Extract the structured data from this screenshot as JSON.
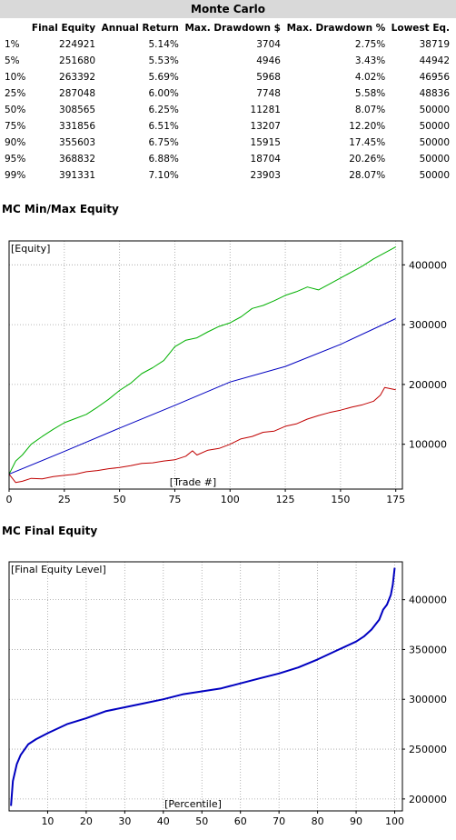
{
  "monte_carlo": {
    "title": "Monte Carlo",
    "columns": [
      "",
      "Final Equity",
      "Annual Return",
      "Max. Drawdown $",
      "Max. Drawdown %",
      "Lowest Eq."
    ],
    "rows": [
      [
        "1%",
        "224921",
        "5.14%",
        "3704",
        "2.75%",
        "38719"
      ],
      [
        "5%",
        "251680",
        "5.53%",
        "4946",
        "3.43%",
        "44942"
      ],
      [
        "10%",
        "263392",
        "5.69%",
        "5968",
        "4.02%",
        "46956"
      ],
      [
        "25%",
        "287048",
        "6.00%",
        "7748",
        "5.58%",
        "48836"
      ],
      [
        "50%",
        "308565",
        "6.25%",
        "11281",
        "8.07%",
        "50000"
      ],
      [
        "75%",
        "331856",
        "6.51%",
        "13207",
        "12.20%",
        "50000"
      ],
      [
        "90%",
        "355603",
        "6.75%",
        "15915",
        "17.45%",
        "50000"
      ],
      [
        "95%",
        "368832",
        "6.88%",
        "18704",
        "20.26%",
        "50000"
      ],
      [
        "99%",
        "391331",
        "7.10%",
        "23903",
        "28.07%",
        "50000"
      ]
    ]
  },
  "chart_data": [
    {
      "type": "line",
      "section_title": "MC Min/Max Equity",
      "ylabel": "[Equity]",
      "xlabel": "[Trade #]",
      "xlim": [
        0,
        178
      ],
      "ylim": [
        25000,
        440000
      ],
      "xticks": [
        0,
        25,
        50,
        75,
        100,
        125,
        150,
        175
      ],
      "yticks": [
        100000,
        200000,
        300000,
        400000
      ],
      "ytick_labels": [
        "100000",
        "200000",
        "300000",
        "400000"
      ],
      "grid": true,
      "series": [
        {
          "color": "#00b000",
          "x": [
            0,
            3,
            6,
            10,
            15,
            20,
            25,
            30,
            35,
            40,
            45,
            50,
            55,
            60,
            65,
            70,
            75,
            80,
            85,
            90,
            95,
            100,
            105,
            110,
            115,
            120,
            125,
            130,
            135,
            140,
            145,
            150,
            155,
            160,
            165,
            170,
            175
          ],
          "y": [
            50000,
            72000,
            82000,
            100000,
            113000,
            125000,
            136000,
            143000,
            150000,
            162000,
            175000,
            190000,
            202000,
            218000,
            228000,
            240000,
            263000,
            274000,
            278000,
            288000,
            297000,
            303000,
            313000,
            327000,
            332000,
            340000,
            349000,
            355000,
            363000,
            358000,
            368000,
            378000,
            388000,
            398000,
            410000,
            420000,
            430000
          ]
        },
        {
          "color": "#0000c0",
          "x": [
            0,
            25,
            50,
            75,
            100,
            125,
            150,
            175
          ],
          "y": [
            50000,
            88000,
            127000,
            165000,
            204000,
            230000,
            267000,
            310000
          ]
        },
        {
          "color": "#c00000",
          "x": [
            0,
            3,
            6,
            10,
            15,
            20,
            25,
            30,
            35,
            40,
            45,
            50,
            55,
            60,
            65,
            70,
            75,
            80,
            83,
            85,
            90,
            95,
            100,
            105,
            110,
            115,
            120,
            125,
            130,
            135,
            140,
            145,
            150,
            155,
            160,
            165,
            168,
            170,
            175
          ],
          "y": [
            50000,
            36000,
            38000,
            43000,
            42000,
            46000,
            48000,
            50000,
            54000,
            56000,
            59000,
            61000,
            64000,
            68000,
            69000,
            72000,
            74000,
            80000,
            89000,
            82000,
            90000,
            93000,
            100000,
            109000,
            113000,
            120000,
            122000,
            130000,
            134000,
            142000,
            148000,
            153000,
            157000,
            162000,
            166000,
            172000,
            182000,
            195000,
            191000
          ]
        }
      ]
    },
    {
      "type": "line",
      "section_title": "MC Final Equity",
      "ylabel": "[Final Equity Level]",
      "xlabel": "[Percentile]",
      "xlim": [
        0,
        102
      ],
      "ylim": [
        188000,
        438000
      ],
      "xticks": [
        10,
        20,
        30,
        40,
        50,
        60,
        70,
        80,
        90,
        100
      ],
      "yticks": [
        200000,
        250000,
        300000,
        350000,
        400000
      ],
      "ytick_labels": [
        "200000",
        "250000",
        "300000",
        "350000",
        "400000"
      ],
      "grid": true,
      "series": [
        {
          "color": "#0000c0",
          "x": [
            0.5,
            1,
            2,
            3,
            5,
            7,
            10,
            15,
            20,
            25,
            30,
            35,
            40,
            45,
            50,
            55,
            60,
            65,
            70,
            75,
            80,
            85,
            90,
            92,
            94,
            96,
            97,
            98,
            99,
            99.5,
            100
          ],
          "y": [
            193000,
            218000,
            235000,
            244000,
            255000,
            260000,
            266000,
            275000,
            281000,
            288000,
            292000,
            296000,
            300000,
            305000,
            308000,
            311000,
            316000,
            321000,
            326000,
            332000,
            340000,
            349000,
            358000,
            363000,
            370000,
            380000,
            390000,
            395000,
            405000,
            415000,
            432000
          ]
        }
      ]
    }
  ]
}
